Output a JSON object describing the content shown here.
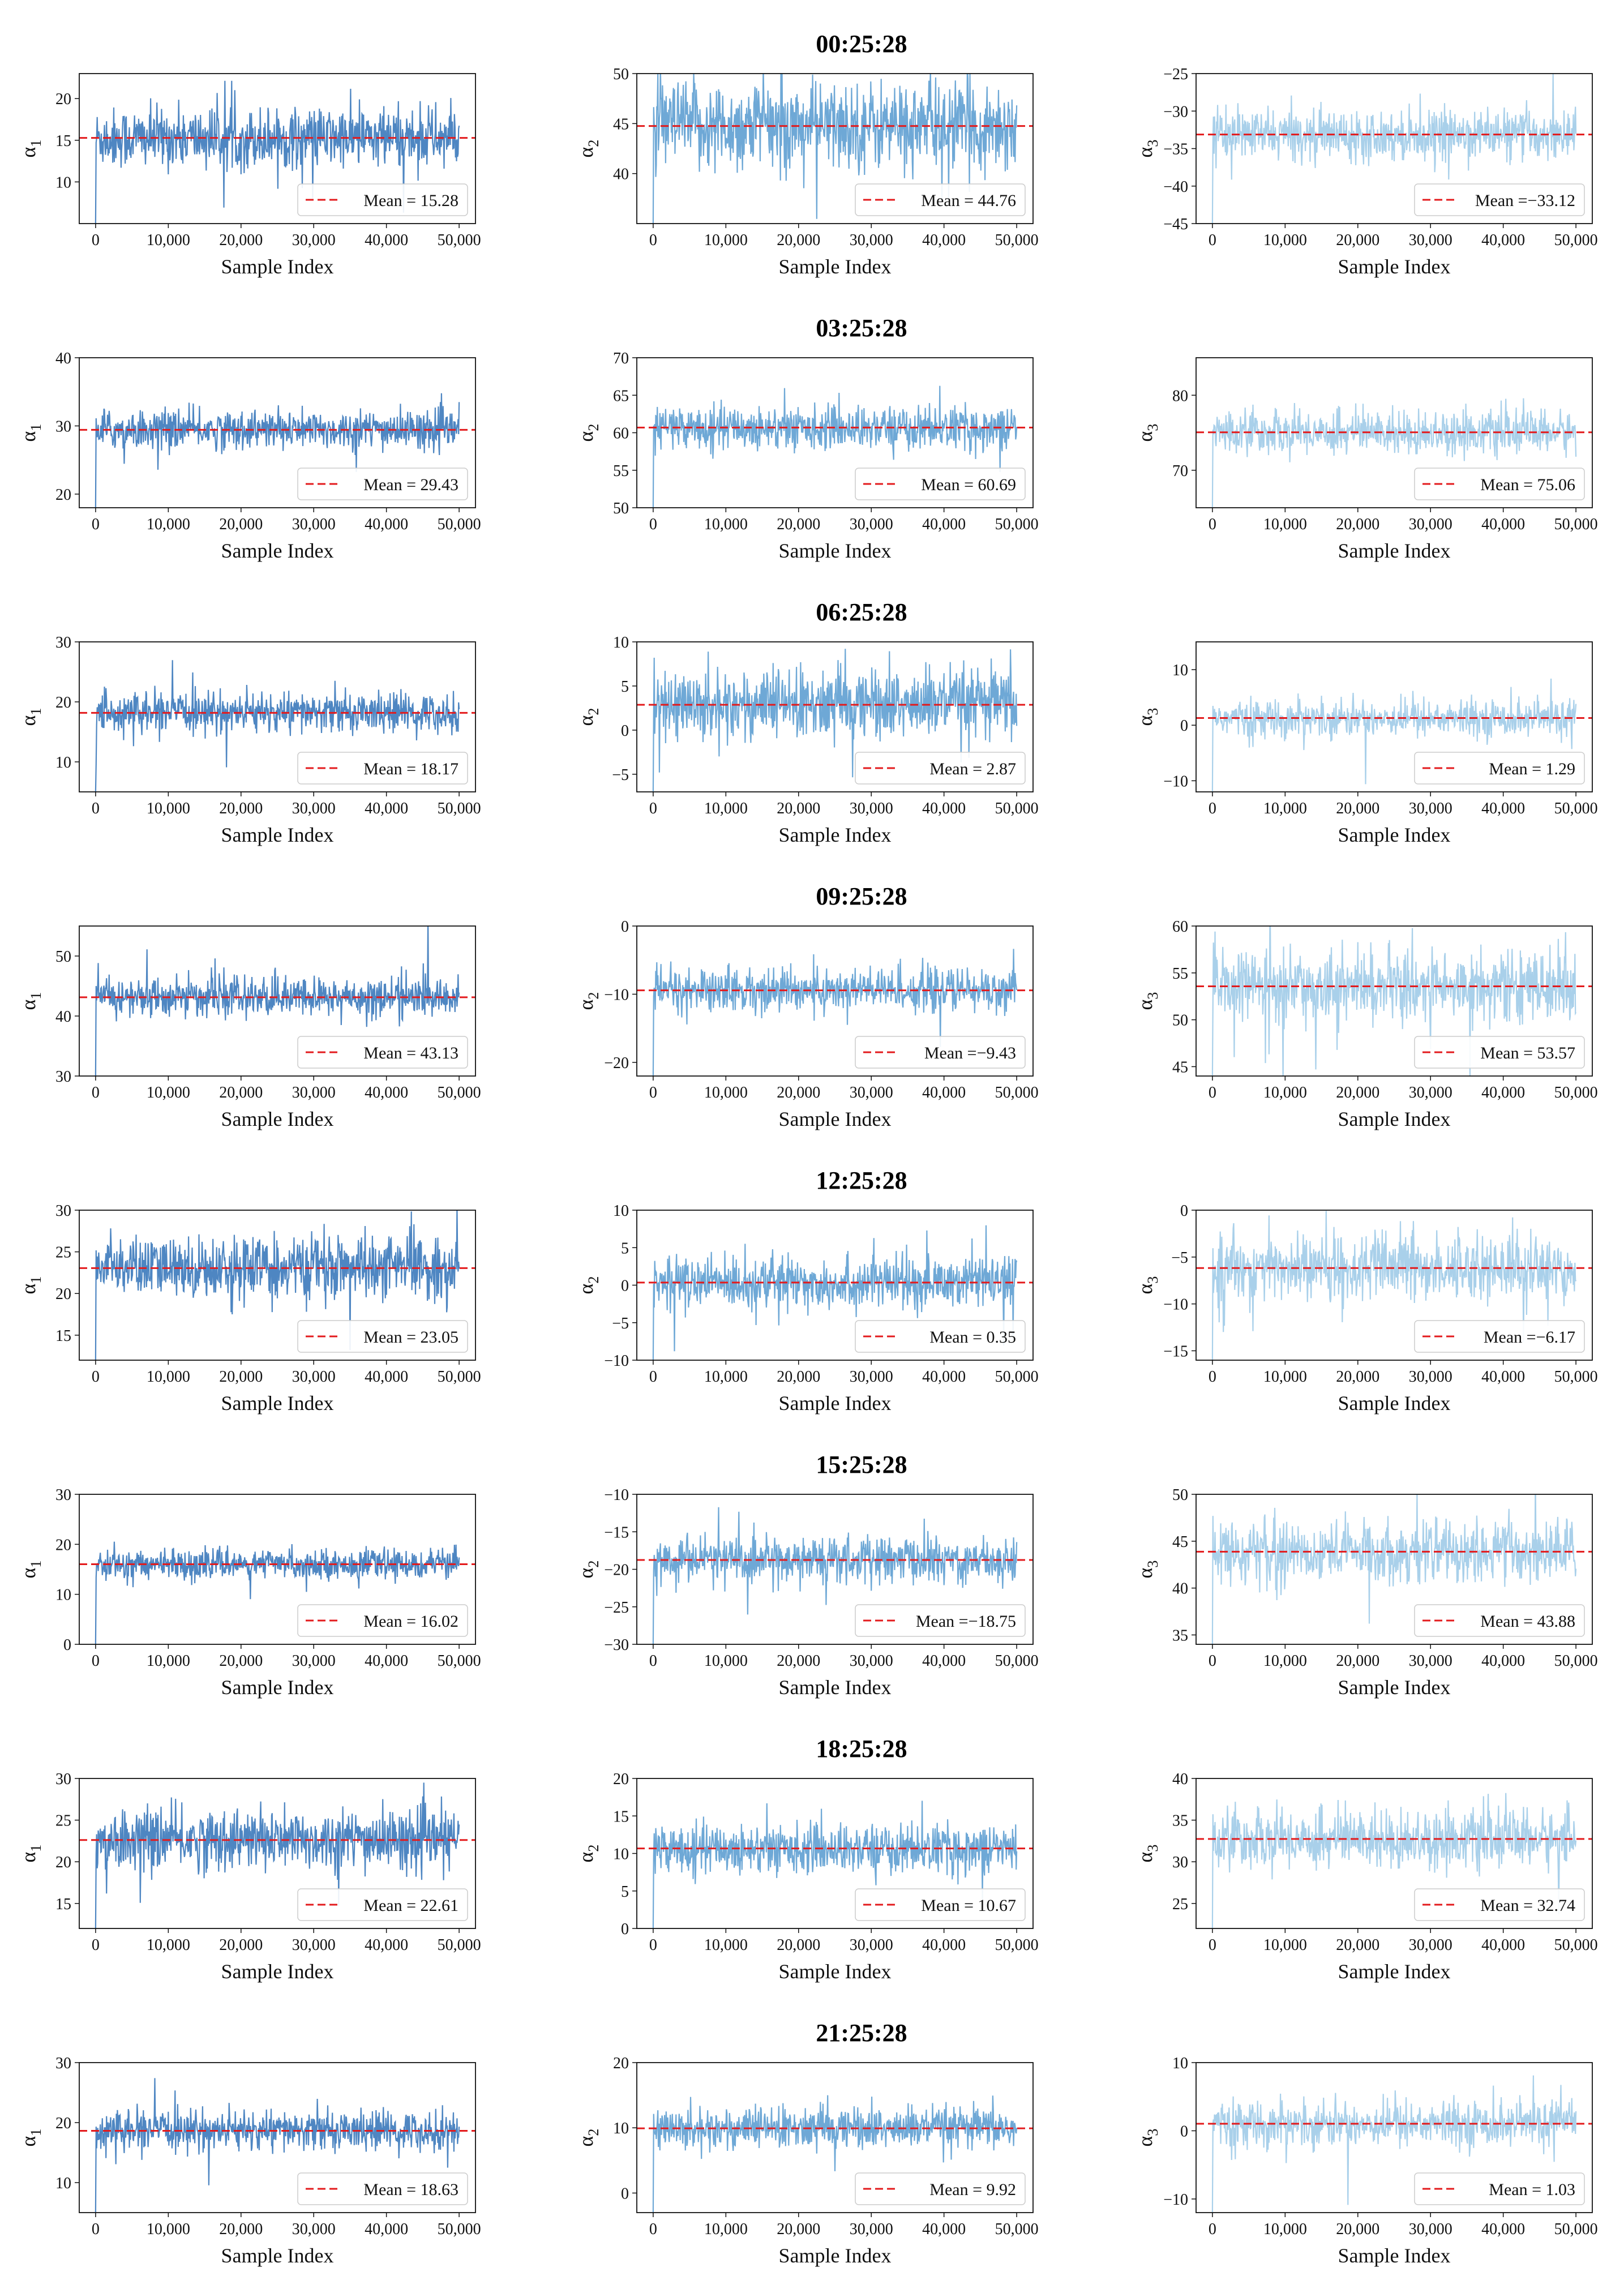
{
  "figure": {
    "colors": {
      "alpha1": "#4e86c2",
      "alpha2": "#6ea8d6",
      "alpha3": "#a9d0ea",
      "mean_line": "#e31a1c"
    },
    "xlabel": "Sample Index",
    "x_ticks": [
      "0",
      "10,000",
      "20,000",
      "30,000",
      "40,000",
      "50,000"
    ],
    "param_labels": [
      "α1",
      "α2",
      "α3"
    ]
  },
  "chart_data": [
    {
      "title": "00:25:28",
      "type": "line",
      "panels": [
        {
          "param": "α1",
          "ylabel": "α",
          "sub": "1",
          "ylim": [
            5,
            23
          ],
          "yticks": [
            "10",
            "15",
            "20"
          ],
          "ytick_values": [
            10,
            15,
            20
          ],
          "mean": 15.28,
          "legend": "Mean = 15.28",
          "spread": 1.8,
          "start": 5
        },
        {
          "param": "α2",
          "ylabel": "α",
          "sub": "2",
          "ylim": [
            35,
            50
          ],
          "yticks": [
            "40",
            "45",
            "50"
          ],
          "ytick_values": [
            40,
            45,
            50
          ],
          "mean": 44.76,
          "legend": "Mean = 44.76",
          "spread": 2.2,
          "start": 35
        },
        {
          "param": "α3",
          "ylabel": "α",
          "sub": "3",
          "ylim": [
            -45,
            -25
          ],
          "yticks": [
            "−45",
            "−40",
            "−35",
            "−30",
            "−25"
          ],
          "ytick_values": [
            -45,
            -40,
            -35,
            -30,
            -25
          ],
          "mean": -33.12,
          "legend": "Mean =−33.12",
          "spread": 1.6,
          "start": -45
        }
      ]
    },
    {
      "title": "03:25:28",
      "type": "line",
      "panels": [
        {
          "param": "α1",
          "ylabel": "α",
          "sub": "1",
          "ylim": [
            18,
            40
          ],
          "yticks": [
            "20",
            "30",
            "40"
          ],
          "ytick_values": [
            20,
            30,
            40
          ],
          "mean": 29.43,
          "legend": "Mean = 29.43",
          "spread": 1.4,
          "start": 18
        },
        {
          "param": "α2",
          "ylabel": "α",
          "sub": "2",
          "ylim": [
            50,
            70
          ],
          "yticks": [
            "50",
            "55",
            "60",
            "65",
            "70"
          ],
          "ytick_values": [
            50,
            55,
            60,
            65,
            70
          ],
          "mean": 60.69,
          "legend": "Mean = 60.69",
          "spread": 1.4,
          "start": 50
        },
        {
          "param": "α3",
          "ylabel": "α",
          "sub": "3",
          "ylim": [
            65,
            85
          ],
          "yticks": [
            "70",
            "80"
          ],
          "ytick_values": [
            70,
            80
          ],
          "mean": 75.06,
          "legend": "Mean = 75.06",
          "spread": 1.4,
          "start": 65
        }
      ]
    },
    {
      "title": "06:25:28",
      "type": "line",
      "panels": [
        {
          "param": "α1",
          "ylabel": "α",
          "sub": "1",
          "ylim": [
            5,
            30
          ],
          "yticks": [
            "10",
            "20",
            "30"
          ],
          "ytick_values": [
            10,
            20,
            30
          ],
          "mean": 18.17,
          "legend": "Mean = 18.17",
          "spread": 1.6,
          "start": 5
        },
        {
          "param": "α2",
          "ylabel": "α",
          "sub": "2",
          "ylim": [
            -7,
            10
          ],
          "yticks": [
            "−5",
            "0",
            "5",
            "10"
          ],
          "ytick_values": [
            -5,
            0,
            5,
            10
          ],
          "mean": 2.87,
          "legend": "Mean = 2.87",
          "spread": 2.0,
          "start": -7
        },
        {
          "param": "α3",
          "ylabel": "α",
          "sub": "3",
          "ylim": [
            -12,
            15
          ],
          "yticks": [
            "−10",
            "0",
            "10"
          ],
          "ytick_values": [
            -10,
            0,
            10
          ],
          "mean": 1.29,
          "legend": "Mean = 1.29",
          "spread": 1.6,
          "start": -12
        }
      ]
    },
    {
      "title": "09:25:28",
      "type": "line",
      "panels": [
        {
          "param": "α1",
          "ylabel": "α",
          "sub": "1",
          "ylim": [
            30,
            55
          ],
          "yticks": [
            "30",
            "40",
            "50"
          ],
          "ytick_values": [
            30,
            40,
            50
          ],
          "mean": 43.13,
          "legend": "Mean = 43.13",
          "spread": 1.6,
          "start": 30
        },
        {
          "param": "α2",
          "ylabel": "α",
          "sub": "2",
          "ylim": [
            -22,
            0
          ],
          "yticks": [
            "−20",
            "−10",
            "0"
          ],
          "ytick_values": [
            -20,
            -10,
            0
          ],
          "mean": -9.43,
          "legend": "Mean =−9.43",
          "spread": 1.6,
          "start": -22
        },
        {
          "param": "α3",
          "ylabel": "α",
          "sub": "3",
          "ylim": [
            44,
            60
          ],
          "yticks": [
            "45",
            "50",
            "55",
            "60"
          ],
          "ytick_values": [
            45,
            50,
            55,
            60
          ],
          "mean": 53.57,
          "legend": "Mean = 53.57",
          "spread": 1.8,
          "start": 44
        }
      ]
    },
    {
      "title": "12:25:28",
      "type": "line",
      "panels": [
        {
          "param": "α1",
          "ylabel": "α",
          "sub": "1",
          "ylim": [
            12,
            30
          ],
          "yticks": [
            "15",
            "20",
            "25",
            "30"
          ],
          "ytick_values": [
            15,
            20,
            25,
            30
          ],
          "mean": 23.05,
          "legend": "Mean = 23.05",
          "spread": 1.8,
          "start": 12
        },
        {
          "param": "α2",
          "ylabel": "α",
          "sub": "2",
          "ylim": [
            -10,
            10
          ],
          "yticks": [
            "−10",
            "−5",
            "0",
            "5",
            "10"
          ],
          "ytick_values": [
            -10,
            -5,
            0,
            5,
            10
          ],
          "mean": 0.35,
          "legend": "Mean = 0.35",
          "spread": 1.7,
          "start": -10
        },
        {
          "param": "α3",
          "ylabel": "α",
          "sub": "3",
          "ylim": [
            -16,
            0
          ],
          "yticks": [
            "−15",
            "−10",
            "−5",
            "0"
          ],
          "ytick_values": [
            -15,
            -10,
            -5,
            0
          ],
          "mean": -6.17,
          "legend": "Mean =−6.17",
          "spread": 1.7,
          "start": -16
        }
      ]
    },
    {
      "title": "15:25:28",
      "type": "line",
      "panels": [
        {
          "param": "α1",
          "ylabel": "α",
          "sub": "1",
          "ylim": [
            0,
            30
          ],
          "yticks": [
            "0",
            "10",
            "20",
            "30"
          ],
          "ytick_values": [
            0,
            10,
            20,
            30
          ],
          "mean": 16.02,
          "legend": "Mean = 16.02",
          "spread": 1.4,
          "start": 0
        },
        {
          "param": "α2",
          "ylabel": "α",
          "sub": "2",
          "ylim": [
            -30,
            -10
          ],
          "yticks": [
            "−30",
            "−25",
            "−20",
            "−15",
            "−10"
          ],
          "ytick_values": [
            -30,
            -25,
            -20,
            -15,
            -10
          ],
          "mean": -18.75,
          "legend": "Mean =−18.75",
          "spread": 1.5,
          "start": -30
        },
        {
          "param": "α3",
          "ylabel": "α",
          "sub": "3",
          "ylim": [
            34,
            50
          ],
          "yticks": [
            "35",
            "40",
            "45",
            "50"
          ],
          "ytick_values": [
            35,
            40,
            45,
            50
          ],
          "mean": 43.88,
          "legend": "Mean = 43.88",
          "spread": 1.6,
          "start": 34
        }
      ]
    },
    {
      "title": "18:25:28",
      "type": "line",
      "panels": [
        {
          "param": "α1",
          "ylabel": "α",
          "sub": "1",
          "ylim": [
            12,
            30
          ],
          "yticks": [
            "15",
            "20",
            "25",
            "30"
          ],
          "ytick_values": [
            15,
            20,
            25,
            30
          ],
          "mean": 22.61,
          "legend": "Mean = 22.61",
          "spread": 1.8,
          "start": 12
        },
        {
          "param": "α2",
          "ylabel": "α",
          "sub": "2",
          "ylim": [
            0,
            20
          ],
          "yticks": [
            "0",
            "5",
            "10",
            "15",
            "20"
          ],
          "ytick_values": [
            0,
            5,
            10,
            15,
            20
          ],
          "mean": 10.67,
          "legend": "Mean = 10.67",
          "spread": 1.6,
          "start": 0
        },
        {
          "param": "α3",
          "ylabel": "α",
          "sub": "3",
          "ylim": [
            22,
            40
          ],
          "yticks": [
            "25",
            "30",
            "35",
            "40"
          ],
          "ytick_values": [
            25,
            30,
            35,
            40
          ],
          "mean": 32.74,
          "legend": "Mean = 32.74",
          "spread": 1.7,
          "start": 22
        }
      ]
    },
    {
      "title": "21:25:28",
      "type": "line",
      "panels": [
        {
          "param": "α1",
          "ylabel": "α",
          "sub": "1",
          "ylim": [
            5,
            30
          ],
          "yticks": [
            "10",
            "20",
            "30"
          ],
          "ytick_values": [
            10,
            20,
            30
          ],
          "mean": 18.63,
          "legend": "Mean = 18.63",
          "spread": 1.6,
          "start": 5
        },
        {
          "param": "α2",
          "ylabel": "α",
          "sub": "2",
          "ylim": [
            -3,
            20
          ],
          "yticks": [
            "0",
            "10",
            "20"
          ],
          "ytick_values": [
            0,
            10,
            20
          ],
          "mean": 9.92,
          "legend": "Mean = 9.92",
          "spread": 1.6,
          "start": -3
        },
        {
          "param": "α3",
          "ylabel": "α",
          "sub": "3",
          "ylim": [
            -12,
            10
          ],
          "yticks": [
            "−10",
            "0",
            "10"
          ],
          "ytick_values": [
            -10,
            0,
            10
          ],
          "mean": 1.03,
          "legend": "Mean = 1.03",
          "spread": 1.6,
          "start": -12
        }
      ]
    }
  ]
}
